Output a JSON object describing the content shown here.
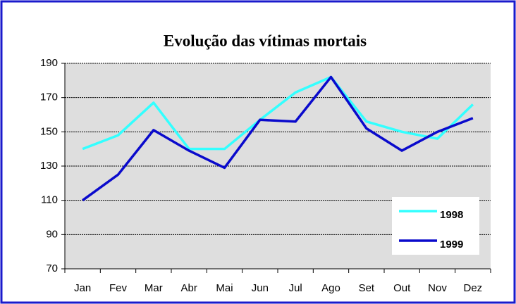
{
  "chart_data": {
    "type": "line",
    "title": "Evolução das vítimas mortais",
    "categories": [
      "Jan",
      "Fev",
      "Mar",
      "Abr",
      "Mai",
      "Jun",
      "Jul",
      "Ago",
      "Set",
      "Out",
      "Nov",
      "Dez"
    ],
    "series": [
      {
        "name": "1998",
        "color": "#33ffff",
        "values": [
          140,
          148,
          167,
          140,
          140,
          157,
          173,
          182,
          156,
          150,
          146,
          166
        ]
      },
      {
        "name": "1999",
        "color": "#0a0acc",
        "values": [
          110,
          125,
          151,
          139,
          129,
          157,
          156,
          182,
          152,
          139,
          150,
          158
        ]
      }
    ],
    "ylim": [
      70,
      190
    ],
    "yticks": [
      70,
      90,
      110,
      130,
      150,
      170,
      190
    ],
    "grid": true,
    "legend": "lower right"
  }
}
